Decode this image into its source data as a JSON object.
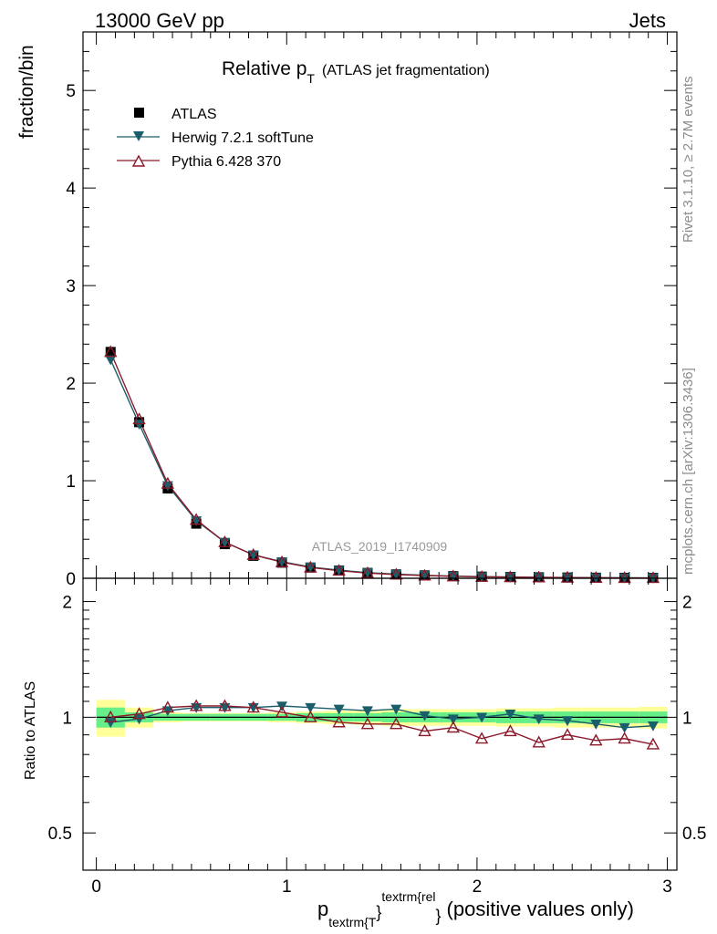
{
  "header": {
    "left": "13000 GeV pp",
    "right": "Jets"
  },
  "side_labels": {
    "rivet": "Rivet 3.1.10, ≥ 2.7M events",
    "mcplots": "mcplots.cern.ch [arXiv:1306.3436]"
  },
  "analysis_id": "ATLAS_2019_I1740909",
  "colors": {
    "atlas": "#000000",
    "herwig": "#1b5e6b",
    "pythia": "#8b1a2b",
    "band_inner": "#66ee88",
    "band_outer": "#ffff99"
  },
  "chart_data": [
    {
      "type": "scatter",
      "panel": "main",
      "title": "Relative p",
      "title_sub": "T",
      "title_suffix": "(ATLAS jet fragmentation)",
      "ylabel": "fraction/bin",
      "ylim": [
        0,
        5.6
      ],
      "yticks": [
        "0",
        "1",
        "2",
        "3",
        "4",
        "5"
      ],
      "legend_position": "top-left",
      "x": [
        0.075,
        0.225,
        0.375,
        0.525,
        0.675,
        0.825,
        0.975,
        1.125,
        1.275,
        1.425,
        1.575,
        1.725,
        1.875,
        2.025,
        2.175,
        2.325,
        2.475,
        2.625,
        2.775,
        2.925
      ],
      "series": [
        {
          "name": "ATLAS",
          "marker": "square",
          "values": [
            2.32,
            1.6,
            0.92,
            0.56,
            0.35,
            0.23,
            0.16,
            0.11,
            0.08,
            0.055,
            0.04,
            0.03,
            0.022,
            0.017,
            0.013,
            0.01,
            0.008,
            0.006,
            0.005,
            0.004
          ]
        },
        {
          "name": "Herwig 7.2.1 softTune",
          "marker": "triangle-down",
          "values": [
            2.24,
            1.58,
            0.95,
            0.59,
            0.37,
            0.24,
            0.17,
            0.115,
            0.083,
            0.058,
            0.042,
            0.031,
            0.022,
            0.017,
            0.013,
            0.01,
            0.008,
            0.006,
            0.005,
            0.004
          ]
        },
        {
          "name": "Pythia 6.428 370",
          "marker": "triangle-up-open",
          "values": [
            2.32,
            1.63,
            0.97,
            0.6,
            0.37,
            0.24,
            0.165,
            0.11,
            0.078,
            0.053,
            0.038,
            0.028,
            0.02,
            0.015,
            0.012,
            0.009,
            0.007,
            0.005,
            0.004,
            0.003
          ]
        }
      ]
    },
    {
      "type": "line",
      "panel": "ratio",
      "ylabel": "Ratio to ATLAS",
      "ylim": [
        0.4,
        2.3
      ],
      "yscale": "log",
      "yticks": [
        {
          "value": 0.5,
          "label": "0.5"
        },
        {
          "value": 1,
          "label": "1"
        },
        {
          "value": 2,
          "label": "2"
        }
      ],
      "xlabel": "(positive values only)",
      "xlabel_p": "p",
      "xlabel_sub": "textrm{T",
      "xlabel_sup": "textrm{rel",
      "xlabel_brace": "}",
      "xlim": [
        -0.07,
        3.05
      ],
      "xticks": [
        {
          "value": 0,
          "label": "0"
        },
        {
          "value": 1,
          "label": "1"
        },
        {
          "value": 2,
          "label": "2"
        },
        {
          "value": 3,
          "label": "3"
        }
      ],
      "x": [
        0.075,
        0.225,
        0.375,
        0.525,
        0.675,
        0.825,
        0.975,
        1.125,
        1.275,
        1.425,
        1.575,
        1.725,
        1.875,
        2.025,
        2.175,
        2.325,
        2.475,
        2.625,
        2.775,
        2.925
      ],
      "band_inner": [
        0.06,
        0.03,
        0.02,
        0.02,
        0.02,
        0.02,
        0.02,
        0.025,
        0.025,
        0.025,
        0.03,
        0.03,
        0.03,
        0.03,
        0.035,
        0.035,
        0.035,
        0.035,
        0.035,
        0.035
      ],
      "band_outer": [
        0.11,
        0.06,
        0.03,
        0.025,
        0.025,
        0.025,
        0.03,
        0.035,
        0.04,
        0.045,
        0.05,
        0.05,
        0.05,
        0.05,
        0.055,
        0.055,
        0.06,
        0.06,
        0.06,
        0.065
      ],
      "series": [
        {
          "name": "Herwig 7.2.1 softTune",
          "values": [
            0.97,
            0.99,
            1.04,
            1.06,
            1.06,
            1.06,
            1.07,
            1.06,
            1.05,
            1.04,
            1.05,
            1.01,
            0.99,
            1.0,
            1.02,
            0.99,
            0.98,
            0.96,
            0.94,
            0.95
          ]
        },
        {
          "name": "Pythia 6.428 370",
          "values": [
            1.0,
            1.02,
            1.06,
            1.07,
            1.07,
            1.06,
            1.03,
            1.0,
            0.97,
            0.96,
            0.96,
            0.92,
            0.94,
            0.88,
            0.92,
            0.86,
            0.9,
            0.87,
            0.88,
            0.85
          ]
        }
      ]
    }
  ]
}
